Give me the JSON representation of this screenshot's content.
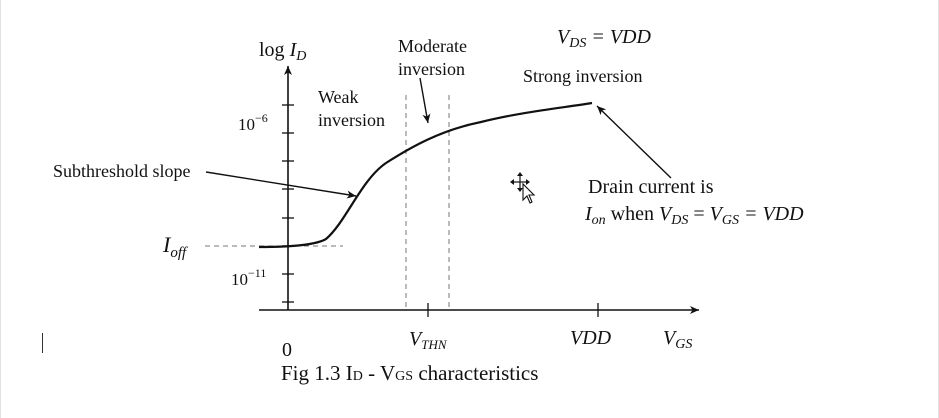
{
  "figure": {
    "caption": "Fig 1.3 ID - VGS characteristics",
    "caption_parts": {
      "prefix": "Fig 1.3 I",
      "sub1": "D",
      "mid": " - V",
      "sub2": "GS",
      "suffix": " characteristics"
    }
  },
  "axes": {
    "y_label": {
      "prefix": "log ",
      "var": "I",
      "sub": "D"
    },
    "x_label": {
      "var": "V",
      "sub": "GS"
    },
    "y_ticks": [
      {
        "base": "10",
        "exp": "−6"
      },
      {
        "base": "10",
        "exp": "−11"
      }
    ],
    "x_ticks": [
      {
        "label": "0"
      },
      {
        "var": "V",
        "sub": "THN"
      },
      {
        "label": "VDD"
      }
    ]
  },
  "condition": {
    "v": "V",
    "sub": "DS",
    "rest": " = VDD"
  },
  "regions": {
    "weak": [
      "Weak",
      "inversion"
    ],
    "moderate": [
      "Moderate",
      "inversion"
    ],
    "strong": "Strong inversion"
  },
  "annotations": {
    "subthreshold": "Subthreshold slope",
    "ioff": {
      "var": "I",
      "sub": "off"
    },
    "drain_line1": "Drain current is",
    "drain_line2": {
      "i": "I",
      "i_sub": "on",
      "when": " when ",
      "v1": "V",
      "v1_sub": "DS",
      "eq1": " = ",
      "v2": "V",
      "v2_sub": "GS",
      "eq2": " = VDD"
    }
  }
}
